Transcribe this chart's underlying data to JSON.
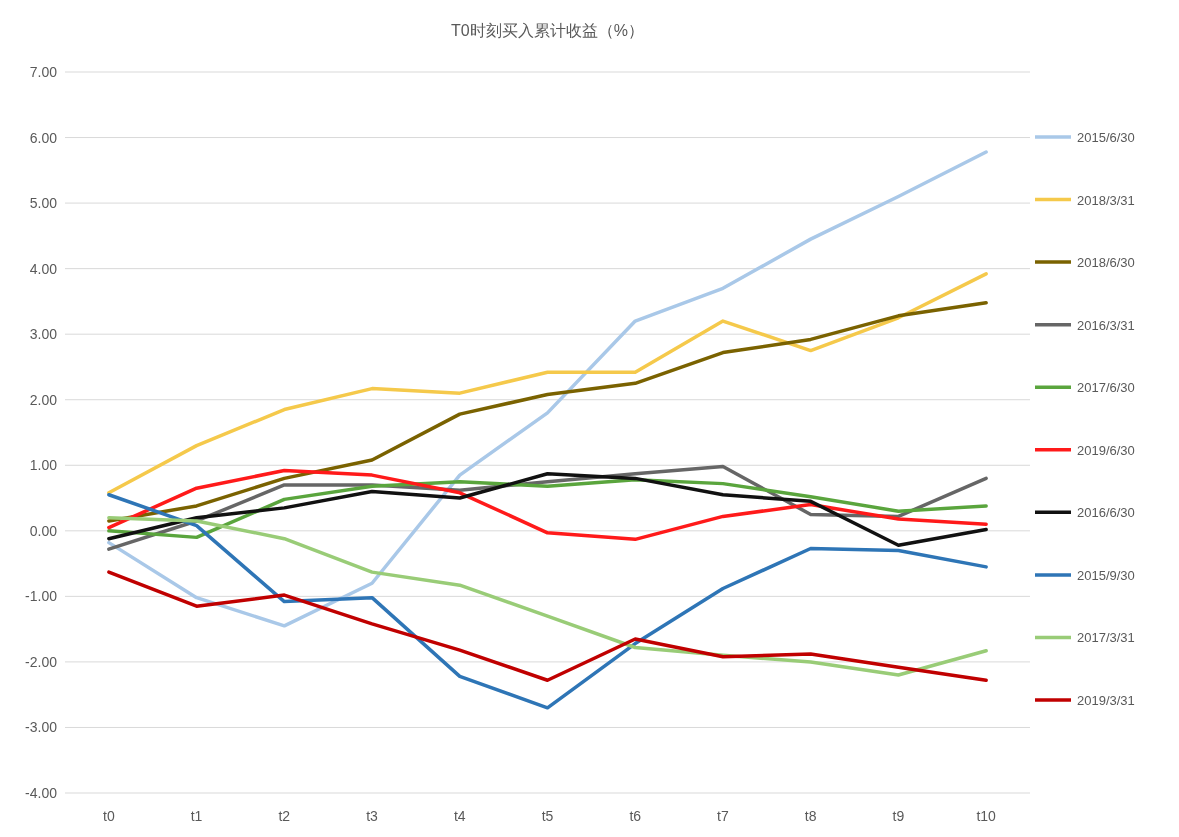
{
  "chart_data": {
    "type": "line",
    "title": "T0时刻买入累计收益（%）",
    "categories": [
      "t0",
      "t1",
      "t2",
      "t3",
      "t4",
      "t5",
      "t6",
      "t7",
      "t8",
      "t9",
      "t10"
    ],
    "ylim": [
      -4,
      7
    ],
    "yticks": [
      {
        "value": -4,
        "label": "-4.00"
      },
      {
        "value": -3,
        "label": "-3.00"
      },
      {
        "value": -2,
        "label": "-2.00"
      },
      {
        "value": -1,
        "label": "-1.00"
      },
      {
        "value": 0,
        "label": "0.00"
      },
      {
        "value": 1,
        "label": "1.00"
      },
      {
        "value": 2,
        "label": "2.00"
      },
      {
        "value": 3,
        "label": "3.00"
      },
      {
        "value": 4,
        "label": "4.00"
      },
      {
        "value": 5,
        "label": "5.00"
      },
      {
        "value": 6,
        "label": "6.00"
      },
      {
        "value": 7,
        "label": "7.00"
      }
    ],
    "grid": "y",
    "legend": "right",
    "marker": "none",
    "line_style": "solid",
    "series": [
      {
        "name": "2015/6/30",
        "color": "#a9c8e8",
        "values": [
          -0.18,
          -1.02,
          -1.45,
          -0.8,
          0.85,
          1.8,
          3.2,
          3.7,
          4.45,
          5.1,
          5.78
        ]
      },
      {
        "name": "2018/3/31",
        "color": "#f5c94b",
        "values": [
          0.58,
          1.3,
          1.85,
          2.17,
          2.1,
          2.42,
          2.42,
          3.2,
          2.75,
          3.25,
          3.92
        ]
      },
      {
        "name": "2018/6/30",
        "color": "#7a6200",
        "values": [
          0.15,
          0.38,
          0.8,
          1.08,
          1.78,
          2.08,
          2.25,
          2.72,
          2.92,
          3.28,
          3.48
        ]
      },
      {
        "name": "2016/3/31",
        "color": "#666666",
        "values": [
          -0.28,
          0.15,
          0.7,
          0.7,
          0.62,
          0.75,
          0.87,
          0.98,
          0.25,
          0.22,
          0.8
        ]
      },
      {
        "name": "2017/6/30",
        "color": "#5aa53d",
        "values": [
          0.0,
          -0.1,
          0.48,
          0.68,
          0.75,
          0.68,
          0.78,
          0.72,
          0.52,
          0.3,
          0.38
        ]
      },
      {
        "name": "2019/6/30",
        "color": "#ff1a1a",
        "values": [
          0.05,
          0.65,
          0.92,
          0.85,
          0.58,
          -0.03,
          -0.13,
          0.22,
          0.4,
          0.18,
          0.1
        ]
      },
      {
        "name": "2016/6/30",
        "color": "#111111",
        "values": [
          -0.12,
          0.2,
          0.35,
          0.6,
          0.5,
          0.87,
          0.8,
          0.55,
          0.45,
          -0.22,
          0.02
        ]
      },
      {
        "name": "2015/9/30",
        "color": "#2e75b6",
        "values": [
          0.55,
          0.08,
          -1.08,
          -1.02,
          -2.22,
          -2.7,
          -1.72,
          -0.88,
          -0.27,
          -0.3,
          -0.55
        ]
      },
      {
        "name": "2017/3/31",
        "color": "#99cc77",
        "values": [
          0.2,
          0.15,
          -0.12,
          -0.63,
          -0.83,
          -1.3,
          -1.78,
          -1.9,
          -2.0,
          -2.2,
          -1.83
        ]
      },
      {
        "name": "2019/3/31",
        "color": "#c00000",
        "values": [
          -0.63,
          -1.15,
          -0.98,
          -1.42,
          -1.82,
          -2.28,
          -1.65,
          -1.92,
          -1.88,
          -2.08,
          -2.28
        ]
      }
    ]
  }
}
